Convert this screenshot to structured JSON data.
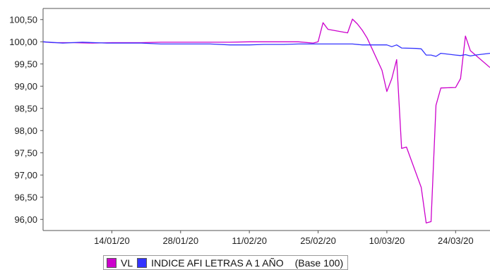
{
  "chart_data": {
    "type": "line",
    "title": "",
    "xlabel": "",
    "ylabel": "",
    "ylim": [
      95.75,
      100.75
    ],
    "yticks": [
      96.0,
      96.5,
      97.0,
      97.5,
      98.0,
      98.5,
      99.0,
      99.5,
      100.0,
      100.5
    ],
    "ytick_labels": [
      "96,00",
      "96,50",
      "97,00",
      "97,50",
      "98,00",
      "98,50",
      "99,00",
      "99,50",
      "100,00",
      "100,50"
    ],
    "xlim": [
      "2019-12-31",
      "2020-03-31"
    ],
    "xticks": [
      "2020-01-14",
      "2020-01-28",
      "2020-02-11",
      "2020-02-25",
      "2020-03-10",
      "2020-03-24"
    ],
    "xtick_labels": [
      "14/01/20",
      "28/01/20",
      "11/02/20",
      "25/02/20",
      "10/03/20",
      "24/03/20"
    ],
    "grid": false,
    "legend_position": "bottom",
    "legend_note": "(Base 100)",
    "series": [
      {
        "name": "VL",
        "color": "#cc00cc",
        "points": [
          [
            "2019-12-31",
            100.0
          ],
          [
            "2020-01-02",
            99.98
          ],
          [
            "2020-01-06",
            99.98
          ],
          [
            "2020-01-10",
            99.97
          ],
          [
            "2020-01-14",
            99.98
          ],
          [
            "2020-01-20",
            99.98
          ],
          [
            "2020-01-24",
            99.99
          ],
          [
            "2020-01-28",
            99.99
          ],
          [
            "2020-02-03",
            99.99
          ],
          [
            "2020-02-07",
            99.99
          ],
          [
            "2020-02-11",
            100.0
          ],
          [
            "2020-02-17",
            100.0
          ],
          [
            "2020-02-21",
            100.0
          ],
          [
            "2020-02-24",
            99.97
          ],
          [
            "2020-02-25",
            100.0
          ],
          [
            "2020-02-26",
            100.43
          ],
          [
            "2020-02-27",
            100.28
          ],
          [
            "2020-03-02",
            100.2
          ],
          [
            "2020-03-03",
            100.51
          ],
          [
            "2020-03-04",
            100.4
          ],
          [
            "2020-03-05",
            100.26
          ],
          [
            "2020-03-06",
            100.08
          ],
          [
            "2020-03-09",
            99.36
          ],
          [
            "2020-03-10",
            98.88
          ],
          [
            "2020-03-11",
            99.17
          ],
          [
            "2020-03-12",
            99.6
          ],
          [
            "2020-03-13",
            97.6
          ],
          [
            "2020-03-14",
            97.63
          ],
          [
            "2020-03-17",
            96.72
          ],
          [
            "2020-03-18",
            95.92
          ],
          [
            "2020-03-19",
            95.95
          ],
          [
            "2020-03-20",
            98.57
          ],
          [
            "2020-03-21",
            98.96
          ],
          [
            "2020-03-24",
            98.97
          ],
          [
            "2020-03-25",
            99.17
          ],
          [
            "2020-03-26",
            100.13
          ],
          [
            "2020-03-27",
            99.8
          ],
          [
            "2020-03-31",
            99.42
          ]
        ]
      },
      {
        "name": "INDICE AFI LETRAS A 1 AÑO",
        "color": "#3333ff",
        "points": [
          [
            "2019-12-31",
            100.0
          ],
          [
            "2020-01-04",
            99.97
          ],
          [
            "2020-01-08",
            99.99
          ],
          [
            "2020-01-13",
            99.97
          ],
          [
            "2020-01-20",
            99.97
          ],
          [
            "2020-01-24",
            99.95
          ],
          [
            "2020-01-28",
            99.95
          ],
          [
            "2020-02-03",
            99.95
          ],
          [
            "2020-02-07",
            99.93
          ],
          [
            "2020-02-11",
            99.93
          ],
          [
            "2020-02-14",
            99.94
          ],
          [
            "2020-02-18",
            99.94
          ],
          [
            "2020-02-21",
            99.95
          ],
          [
            "2020-02-25",
            99.95
          ],
          [
            "2020-02-28",
            99.95
          ],
          [
            "2020-03-03",
            99.95
          ],
          [
            "2020-03-05",
            99.93
          ],
          [
            "2020-03-10",
            99.93
          ],
          [
            "2020-03-11",
            99.89
          ],
          [
            "2020-03-12",
            99.93
          ],
          [
            "2020-03-13",
            99.86
          ],
          [
            "2020-03-16",
            99.85
          ],
          [
            "2020-03-17",
            99.84
          ],
          [
            "2020-03-18",
            99.7
          ],
          [
            "2020-03-19",
            99.7
          ],
          [
            "2020-03-20",
            99.67
          ],
          [
            "2020-03-21",
            99.74
          ],
          [
            "2020-03-24",
            99.7
          ],
          [
            "2020-03-25",
            99.69
          ],
          [
            "2020-03-26",
            99.71
          ],
          [
            "2020-03-27",
            99.68
          ],
          [
            "2020-03-28",
            99.7
          ],
          [
            "2020-03-31",
            99.74
          ]
        ]
      }
    ]
  }
}
